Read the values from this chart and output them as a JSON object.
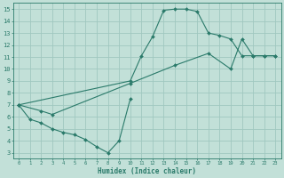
{
  "xlabel": "Humidex (Indice chaleur)",
  "bg_color": "#c2e0d8",
  "grid_color": "#a0c8c0",
  "line_color": "#2a7a6a",
  "xlim": [
    -0.5,
    23.5
  ],
  "ylim": [
    2.5,
    15.5
  ],
  "xticks": [
    0,
    1,
    2,
    3,
    4,
    5,
    6,
    7,
    8,
    9,
    10,
    11,
    12,
    13,
    14,
    15,
    16,
    17,
    18,
    19,
    20,
    21,
    22,
    23
  ],
  "yticks": [
    3,
    4,
    5,
    6,
    7,
    8,
    9,
    10,
    11,
    12,
    13,
    14,
    15
  ],
  "line1_x": [
    0,
    1,
    2,
    3,
    4,
    5,
    6,
    7,
    8,
    9,
    10
  ],
  "line1_y": [
    7.0,
    5.8,
    5.5,
    5.0,
    4.7,
    4.5,
    4.1,
    3.5,
    3.0,
    4.0,
    7.5
  ],
  "line2_x": [
    0,
    2,
    3,
    10,
    14,
    17,
    19,
    20,
    21,
    22,
    23
  ],
  "line2_y": [
    7.0,
    6.5,
    6.2,
    8.8,
    10.3,
    11.3,
    10.0,
    12.5,
    11.1,
    11.1,
    11.1
  ],
  "line3_x": [
    0,
    10,
    11,
    12,
    13,
    14,
    15,
    16,
    17,
    18,
    19,
    20,
    21,
    22,
    23
  ],
  "line3_y": [
    7.0,
    9.0,
    11.1,
    12.7,
    14.9,
    15.0,
    15.0,
    14.8,
    13.0,
    12.8,
    12.5,
    11.1,
    11.1,
    11.1,
    11.1
  ]
}
